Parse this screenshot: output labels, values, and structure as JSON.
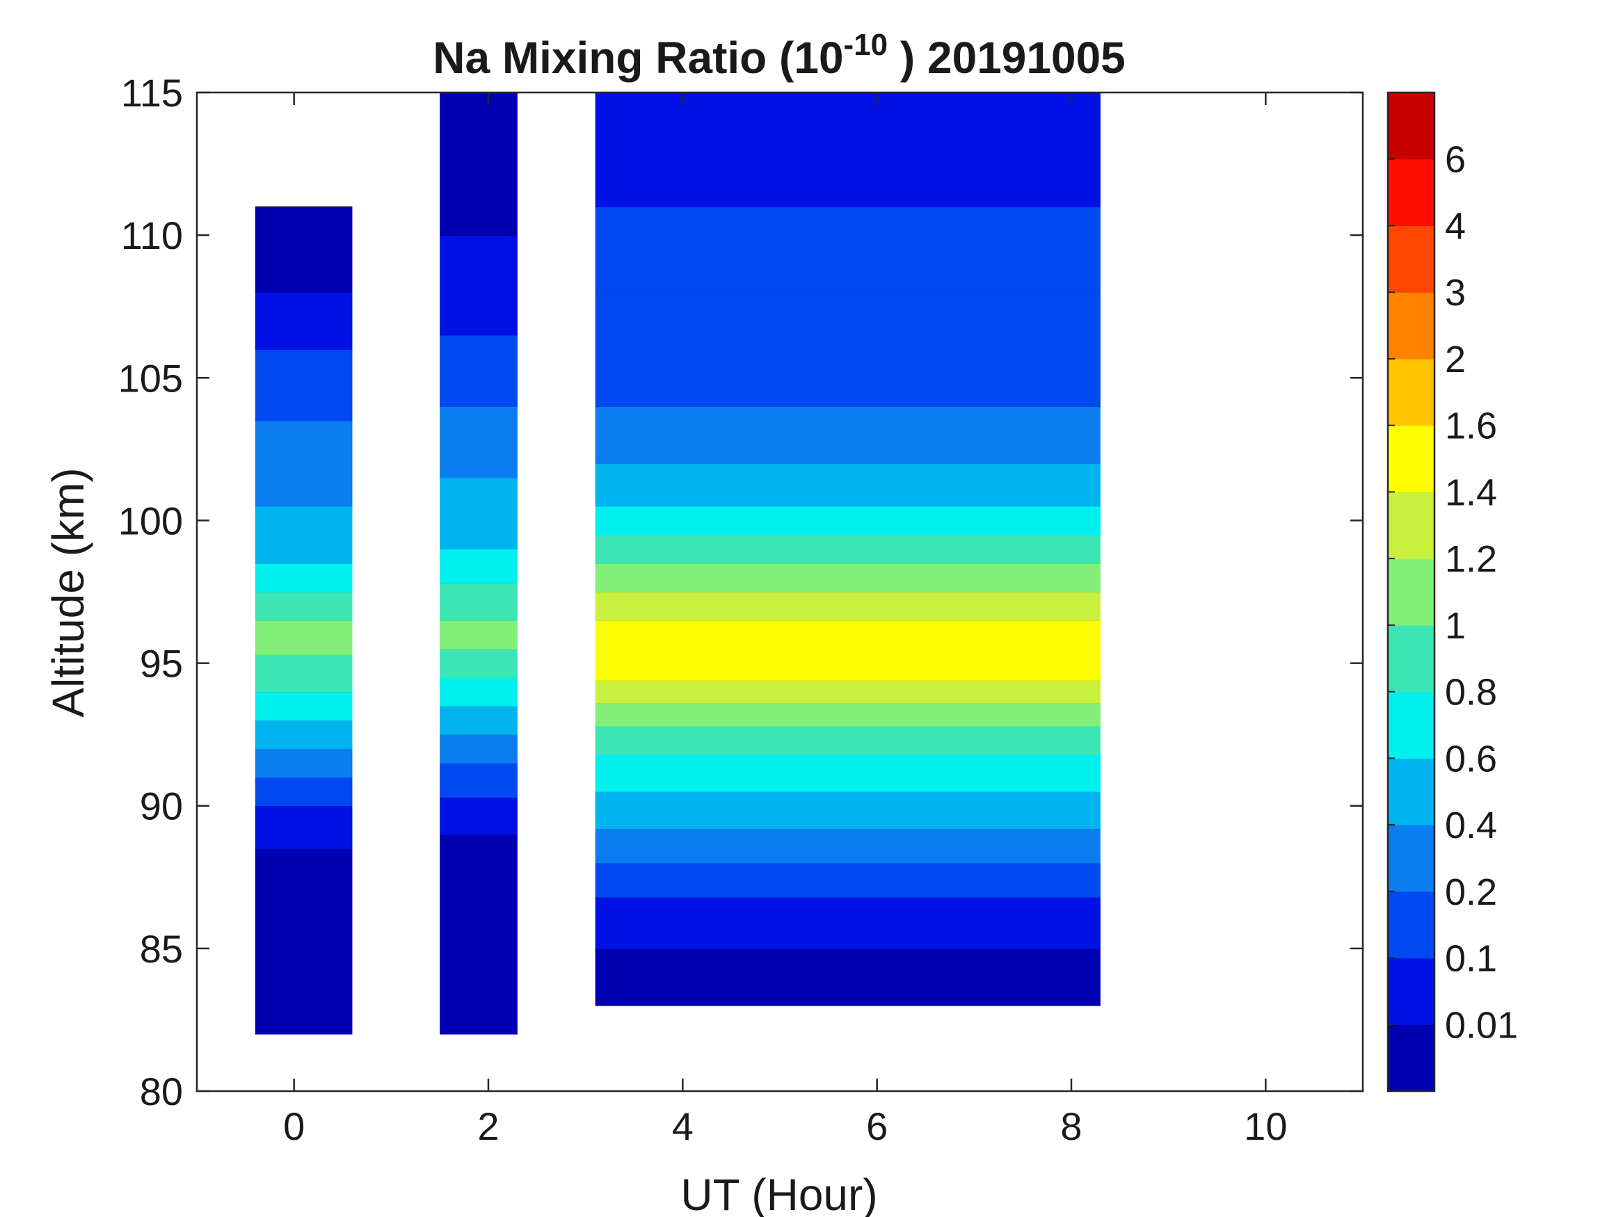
{
  "chart_data": {
    "type": "heatmap",
    "title": {
      "prefix": "Na Mixing Ratio (10",
      "exponent": "-10",
      "suffix": " ) 20191005"
    },
    "xlabel": "UT (Hour)",
    "ylabel": "Altitude (km)",
    "xlim": [
      -1,
      11
    ],
    "ylim": [
      80,
      115
    ],
    "xticks": [
      0,
      2,
      4,
      6,
      8,
      10
    ],
    "xtick_labels": [
      "0",
      "2",
      "4",
      "6",
      "8",
      "10"
    ],
    "yticks": [
      80,
      85,
      90,
      95,
      100,
      105,
      110,
      115
    ],
    "ytick_labels": [
      "80",
      "85",
      "90",
      "95",
      "100",
      "105",
      "110",
      "115"
    ],
    "colorbar": {
      "levels": [
        "",
        "0.01",
        "0.1",
        "0.2",
        "0.4",
        "0.6",
        "0.8",
        "1",
        "1.2",
        "1.4",
        "1.6",
        "2",
        "3",
        "4",
        "6",
        ""
      ],
      "tick_labels": [
        "0.01",
        "0.1",
        "0.2",
        "0.4",
        "0.6",
        "0.8",
        "1",
        "1.2",
        "1.4",
        "1.6",
        "2",
        "3",
        "4",
        "6"
      ],
      "colors": [
        "#0000b3",
        "#0011e6",
        "#0048f0",
        "#0a7df0",
        "#00b4f0",
        "#00f0f0",
        "#3ce6b4",
        "#82f078",
        "#c8f03c",
        "#ffff00",
        "#ffc300",
        "#ff8200",
        "#ff4600",
        "#ff0f00",
        "#c80000"
      ]
    },
    "data_segments": [
      {
        "ut_start": -0.4,
        "ut_end": 0.6,
        "alt_min": 82,
        "alt_max": 111,
        "profile": [
          [
            82,
            0
          ],
          [
            88.5,
            1
          ],
          [
            90,
            2
          ],
          [
            91,
            3
          ],
          [
            92,
            4
          ],
          [
            93,
            5
          ],
          [
            94,
            6
          ],
          [
            95.3,
            7
          ],
          [
            96.5,
            6
          ],
          [
            97.5,
            5
          ],
          [
            98.5,
            4
          ],
          [
            100.5,
            3
          ],
          [
            103.5,
            2
          ],
          [
            106,
            1
          ],
          [
            108,
            0
          ],
          [
            111,
            0
          ]
        ]
      },
      {
        "ut_start": 1.5,
        "ut_end": 2.3,
        "alt_min": 82,
        "alt_max": 115,
        "profile": [
          [
            82,
            0
          ],
          [
            89,
            1
          ],
          [
            90.3,
            2
          ],
          [
            91.5,
            3
          ],
          [
            92.5,
            4
          ],
          [
            93.5,
            5
          ],
          [
            94.5,
            6
          ],
          [
            95.5,
            7
          ],
          [
            96.5,
            6
          ],
          [
            97.8,
            5
          ],
          [
            99,
            4
          ],
          [
            101.5,
            3
          ],
          [
            104,
            2
          ],
          [
            106.5,
            1
          ],
          [
            110,
            0
          ],
          [
            115,
            0
          ]
        ]
      },
      {
        "ut_start": 3.1,
        "ut_end": 8.3,
        "alt_min": 83,
        "alt_max": 115,
        "profile": [
          [
            83,
            0
          ],
          [
            85,
            1
          ],
          [
            86.8,
            2
          ],
          [
            88,
            3
          ],
          [
            89.2,
            4
          ],
          [
            90.5,
            5
          ],
          [
            91.8,
            6
          ],
          [
            92.8,
            7
          ],
          [
            93.6,
            8
          ],
          [
            94.4,
            9
          ],
          [
            95.5,
            9
          ],
          [
            96.5,
            8
          ],
          [
            97.5,
            7
          ],
          [
            98.5,
            6
          ],
          [
            99.5,
            5
          ],
          [
            100.5,
            4
          ],
          [
            102,
            3
          ],
          [
            104,
            2
          ],
          [
            108,
            2
          ],
          [
            111,
            1
          ],
          [
            115,
            1
          ]
        ]
      }
    ]
  }
}
